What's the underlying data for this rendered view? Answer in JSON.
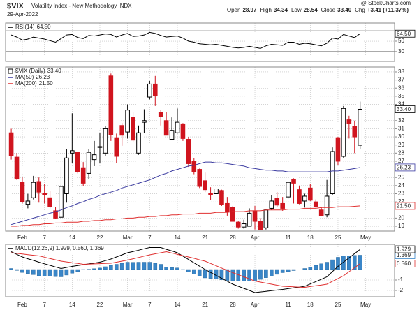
{
  "header": {
    "symbol": "$VIX",
    "name": "Volatility Index - New Methodology  INDX",
    "date": "29-Apr-2022",
    "source": "@ StockCharts.com",
    "quote": [
      {
        "label": "Open",
        "value": "28.97"
      },
      {
        "label": "High",
        "value": "34.34"
      },
      {
        "label": "Low",
        "value": "28.54"
      },
      {
        "label": "Close",
        "value": "33.40"
      },
      {
        "label": "Chg",
        "value": "+3.41 (+11.37%)"
      }
    ]
  },
  "chart_data": [
    {
      "type": "line",
      "ylim": [
        11,
        85
      ],
      "yticks": [
        30,
        50
      ],
      "ref_lines": [
        70,
        30
      ],
      "series": [
        {
          "name": "RSI(14)",
          "color": "#000000",
          "last_value_label": "64.50",
          "values": [
            62,
            58,
            52,
            54,
            58,
            56,
            54,
            51,
            48,
            55,
            62,
            63,
            57,
            55,
            61,
            60,
            62,
            64,
            63,
            58,
            62,
            65,
            59,
            60,
            62,
            67,
            65,
            61,
            58,
            59,
            60,
            56,
            50,
            48,
            45,
            44,
            43,
            44,
            42,
            40,
            38,
            37,
            38,
            40,
            38,
            36,
            41,
            44,
            43,
            42,
            48,
            48,
            44,
            46,
            45,
            43,
            41,
            46,
            56,
            54,
            63,
            60,
            57,
            64.5,
            null
          ]
        }
      ]
    },
    {
      "type": "candlestick",
      "ylim": [
        18.4,
        38.6
      ],
      "yticks": [
        19,
        20,
        22,
        23,
        24,
        25,
        27,
        28,
        29,
        30,
        31,
        32,
        34,
        35,
        36,
        37,
        38
      ],
      "categories": [
        null,
        null,
        "Feb",
        null,
        null,
        null,
        "7",
        null,
        null,
        null,
        null,
        "14",
        null,
        null,
        null,
        null,
        "22",
        null,
        null,
        null,
        null,
        "Mar",
        null,
        null,
        null,
        "7",
        null,
        null,
        null,
        null,
        "14",
        null,
        null,
        null,
        null,
        "21",
        null,
        null,
        null,
        null,
        "28",
        null,
        null,
        null,
        "Apr",
        null,
        null,
        null,
        null,
        null,
        "11",
        null,
        null,
        null,
        "18",
        null,
        null,
        null,
        null,
        "25",
        null,
        null,
        null,
        null,
        "May"
      ],
      "ohlc": {
        "name": "$VIX (Daily)",
        "last_value_label": "33.40",
        "up_color": "#000000",
        "down_color": "#d0141e",
        "open": [
          30.5,
          27.5,
          24.4,
          21.7,
          22.5,
          24.5,
          23.0,
          22.5,
          20.9,
          20.1,
          23.0,
          28.0,
          28.1,
          26.2,
          25.5,
          27.2,
          28.7,
          28.0,
          37.5,
          29.9,
          31.4,
          30.6,
          32.4,
          28.0,
          31.8,
          34.9,
          36.5,
          33.0,
          32.0,
          29.7,
          30.5,
          31.6,
          29.7,
          27.0,
          26.0,
          24.6,
          23.0,
          23.0,
          23.4,
          21.8,
          21.3,
          19.5,
          18.9,
          19.0,
          20.9,
          19.6,
          18.8,
          21.2,
          22.4,
          21.8,
          22.6,
          24.8,
          23.5,
          22.1,
          23.7,
          22.0,
          21.0,
          20.4,
          23.0,
          29.9,
          27.6,
          32.1,
          31.3,
          28.97,
          null
        ],
        "high": [
          31.0,
          28.0,
          25.0,
          23.0,
          25.2,
          25.0,
          24.2,
          23.3,
          21.4,
          26.3,
          28.5,
          32.9,
          28.1,
          26.9,
          28.5,
          29.5,
          30.5,
          31.3,
          37.8,
          30.4,
          31.7,
          34.0,
          33.0,
          31.4,
          33.4,
          36.9,
          37.5,
          33.3,
          33.1,
          32.4,
          33.5,
          31.7,
          30.0,
          27.4,
          26.1,
          25.6,
          23.8,
          24.0,
          23.5,
          22.6,
          21.5,
          19.6,
          19.8,
          21.2,
          21.5,
          20.0,
          21.1,
          22.8,
          23.2,
          22.6,
          24.4,
          24.9,
          24.0,
          23.0,
          24.2,
          22.3,
          21.3,
          24.7,
          28.7,
          30.0,
          33.8,
          32.6,
          32.0,
          34.34,
          null
        ],
        "low": [
          27.2,
          24.7,
          21.8,
          21.2,
          22.3,
          21.9,
          21.8,
          21.2,
          19.9,
          19.9,
          21.9,
          26.8,
          25.5,
          23.9,
          24.8,
          26.4,
          26.8,
          27.6,
          29.5,
          26.8,
          28.9,
          29.8,
          29.3,
          27.8,
          30.5,
          34.6,
          33.8,
          31.4,
          30.2,
          29.6,
          30.4,
          29.5,
          26.3,
          25.4,
          23.7,
          23.2,
          22.2,
          22.4,
          21.5,
          20.3,
          19.6,
          18.7,
          18.7,
          19.0,
          18.6,
          18.6,
          18.6,
          21.0,
          21.4,
          20.9,
          22.4,
          21.8,
          21.7,
          21.3,
          22.1,
          21.3,
          20.3,
          20.1,
          22.8,
          26.5,
          27.4,
          29.8,
          28.0,
          28.54,
          null
        ],
        "close": [
          27.7,
          24.8,
          22.0,
          22.1,
          24.4,
          23.2,
          22.9,
          21.4,
          20.0,
          23.9,
          27.4,
          28.3,
          25.7,
          24.3,
          28.1,
          27.8,
          28.8,
          31.0,
          30.3,
          27.6,
          30.2,
          33.3,
          29.6,
          30.5,
          32.0,
          36.5,
          35.1,
          32.5,
          30.2,
          30.8,
          31.8,
          29.8,
          26.7,
          25.7,
          23.9,
          23.5,
          22.9,
          23.6,
          21.7,
          20.8,
          19.6,
          18.9,
          19.3,
          20.6,
          19.6,
          18.6,
          21.0,
          22.1,
          21.6,
          21.2,
          24.4,
          24.3,
          21.8,
          22.7,
          22.2,
          21.4,
          20.3,
          22.7,
          28.2,
          27.0,
          33.5,
          31.6,
          30.0,
          33.4,
          null
        ]
      },
      "series": [
        {
          "name": "MA(50)",
          "color": "#3b3ba0",
          "last_value_label": "26.23",
          "values": [
            19.2,
            19.4,
            19.6,
            19.8,
            20.0,
            20.2,
            20.4,
            20.6,
            20.8,
            21.0,
            21.3,
            21.5,
            21.8,
            22.0,
            22.3,
            22.5,
            22.8,
            23.0,
            23.2,
            23.4,
            23.7,
            23.9,
            24.1,
            24.3,
            24.5,
            24.7,
            25.0,
            25.3,
            25.5,
            25.8,
            26.0,
            26.2,
            26.4,
            26.5,
            26.7,
            26.9,
            26.9,
            26.8,
            26.8,
            26.7,
            26.6,
            26.5,
            26.4,
            26.2,
            26.1,
            26.0,
            25.9,
            25.9,
            25.8,
            25.8,
            25.7,
            25.7,
            25.7,
            25.7,
            25.7,
            25.7,
            25.7,
            25.7,
            25.8,
            25.8,
            25.9,
            26.0,
            26.1,
            26.23,
            null
          ]
        },
        {
          "name": "MA(200)",
          "color": "#e03030",
          "last_value_label": "21.50",
          "values": [
            19.0,
            19.0,
            19.1,
            19.1,
            19.2,
            19.2,
            19.3,
            19.3,
            19.4,
            19.4,
            19.5,
            19.5,
            19.5,
            19.6,
            19.6,
            19.7,
            19.7,
            19.8,
            19.8,
            19.9,
            19.9,
            20.0,
            20.0,
            20.1,
            20.1,
            20.2,
            20.2,
            20.3,
            20.3,
            20.4,
            20.4,
            20.5,
            20.5,
            20.5,
            20.6,
            20.6,
            20.6,
            20.7,
            20.7,
            20.7,
            20.8,
            20.8,
            20.8,
            20.9,
            20.9,
            20.9,
            21.0,
            21.0,
            21.0,
            21.0,
            21.1,
            21.1,
            21.1,
            21.2,
            21.2,
            21.2,
            21.3,
            21.3,
            21.3,
            21.4,
            21.4,
            21.4,
            21.45,
            21.5,
            null
          ]
        }
      ]
    },
    {
      "type": "combo",
      "ylim": [
        -2.6,
        2.4
      ],
      "yticks": [
        -2,
        -1
      ],
      "legend_text": "MACD(12,26,9) 1.929, 0.560, 1.369",
      "series": [
        {
          "style": "bar",
          "color": "#3a86c8",
          "last_value_label": "1.369",
          "values": [
            0.1,
            -0.09,
            -0.28,
            -0.39,
            -0.49,
            -0.6,
            -0.63,
            -0.65,
            -0.68,
            -0.7,
            -0.53,
            -0.35,
            -0.2,
            -0.04,
            0.02,
            0.08,
            0.14,
            0.27,
            0.4,
            0.5,
            0.6,
            0.7,
            0.69,
            0.7,
            0.7,
            0.7,
            0.6,
            0.5,
            0.23,
            0.19,
            0.15,
            -0.05,
            -0.24,
            -0.43,
            -0.61,
            -0.8,
            -0.86,
            -0.92,
            -0.98,
            -1.04,
            -1.1,
            -1.1,
            -1.1,
            -1.1,
            -1.1,
            -0.94,
            -0.78,
            -0.62,
            -0.46,
            -0.3,
            -0.2,
            -0.1,
            0.0,
            0.1,
            0.25,
            0.4,
            0.55,
            0.7,
            0.93,
            1.17,
            1.31,
            1.32,
            1.35,
            1.369,
            null
          ]
        },
        {
          "style": "line",
          "color": "#000000",
          "last_value_label": "1.929",
          "values": [
            1.7,
            1.45,
            1.2,
            1.03,
            0.87,
            0.7,
            0.55,
            0.4,
            0.25,
            0.1,
            0.2,
            0.3,
            0.38,
            0.46,
            0.54,
            0.62,
            0.7,
            0.85,
            1.0,
            1.2,
            1.4,
            1.6,
            1.72,
            1.85,
            1.98,
            2.1,
            2.1,
            2.1,
            1.93,
            1.77,
            1.6,
            1.28,
            0.96,
            0.64,
            0.32,
            0.0,
            -0.28,
            -0.56,
            -0.84,
            -1.12,
            -1.4,
            -1.6,
            -1.8,
            -2.0,
            -2.2,
            -2.14,
            -2.08,
            -2.02,
            -1.96,
            -1.9,
            -1.83,
            -1.75,
            -1.68,
            -1.6,
            -1.38,
            -1.15,
            -0.93,
            -0.7,
            -0.2,
            0.3,
            0.71,
            1.11,
            1.52,
            1.929,
            null
          ]
        },
        {
          "style": "line",
          "color": "#e03030",
          "last_value_label": "0.560",
          "values": [
            1.6,
            1.54,
            1.48,
            1.42,
            1.36,
            1.3,
            1.18,
            1.05,
            0.93,
            0.8,
            0.73,
            0.65,
            0.58,
            0.5,
            0.52,
            0.54,
            0.56,
            0.58,
            0.6,
            0.7,
            0.8,
            0.9,
            1.03,
            1.15,
            1.28,
            1.4,
            1.5,
            1.6,
            1.7,
            1.58,
            1.45,
            1.33,
            1.2,
            1.07,
            0.93,
            0.8,
            0.58,
            0.36,
            0.14,
            -0.08,
            -0.3,
            -0.5,
            -0.7,
            -0.9,
            -1.1,
            -1.2,
            -1.3,
            -1.4,
            -1.5,
            -1.6,
            -1.63,
            -1.65,
            -1.68,
            -1.7,
            -1.63,
            -1.55,
            -1.48,
            -1.4,
            -1.13,
            -0.87,
            -0.6,
            -0.21,
            0.17,
            0.56,
            null
          ]
        }
      ]
    }
  ]
}
